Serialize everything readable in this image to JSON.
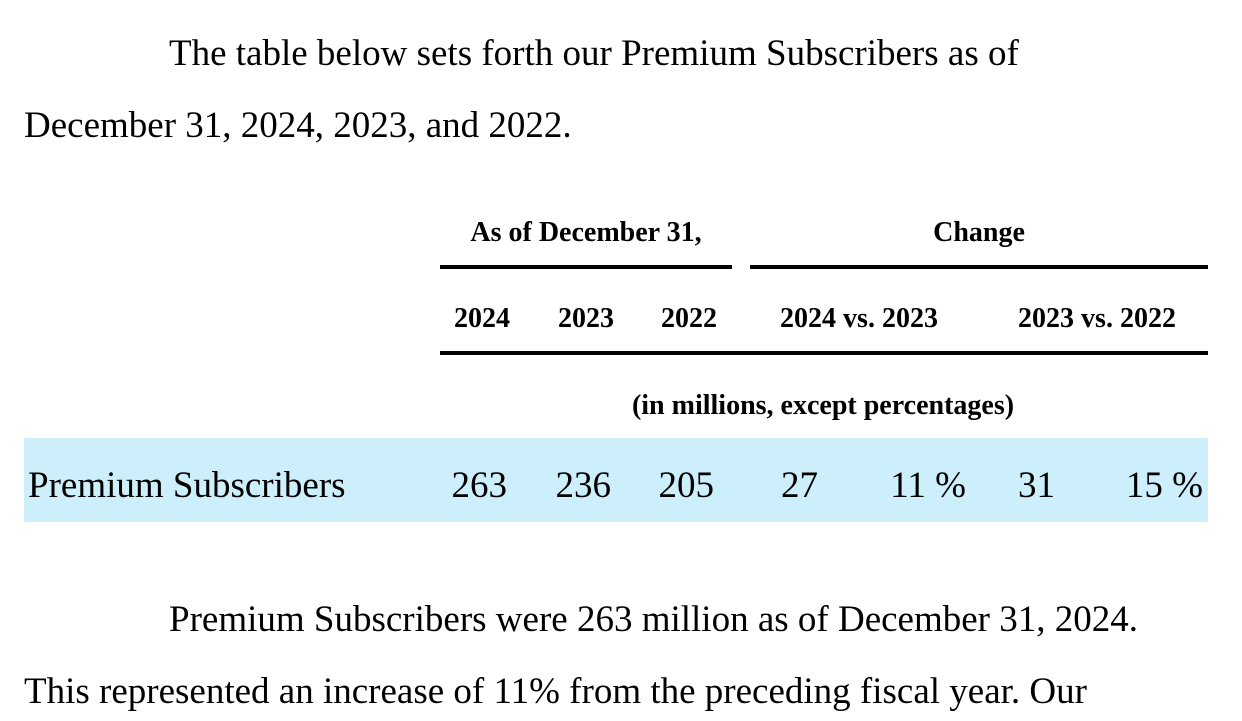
{
  "intro": {
    "line1": "The table below sets forth our Premium Subscribers as of",
    "line2": "December 31, 2024, 2023, and 2022."
  },
  "table": {
    "group_headers": {
      "as_of": "As of December 31,",
      "change": "Change"
    },
    "column_headers": {
      "y2024": "2024",
      "y2023": "2023",
      "y2022": "2022",
      "c1": "2024 vs. 2023",
      "c2": "2023 vs. 2022"
    },
    "units_note": "(in millions, except percentages)",
    "row": {
      "label": "Premium Subscribers",
      "v2024": "263",
      "v2023": "236",
      "v2022": "205",
      "c1_abs": "27",
      "c1_pct": "11 %",
      "c2_abs": "31",
      "c2_pct": "15 %"
    },
    "highlight_color": "#cdeefb"
  },
  "body": {
    "line1": "Premium Subscribers were 263 million as of December 31, 2024.",
    "line2": "This represented an increase of 11% from the preceding fiscal year. Our"
  }
}
